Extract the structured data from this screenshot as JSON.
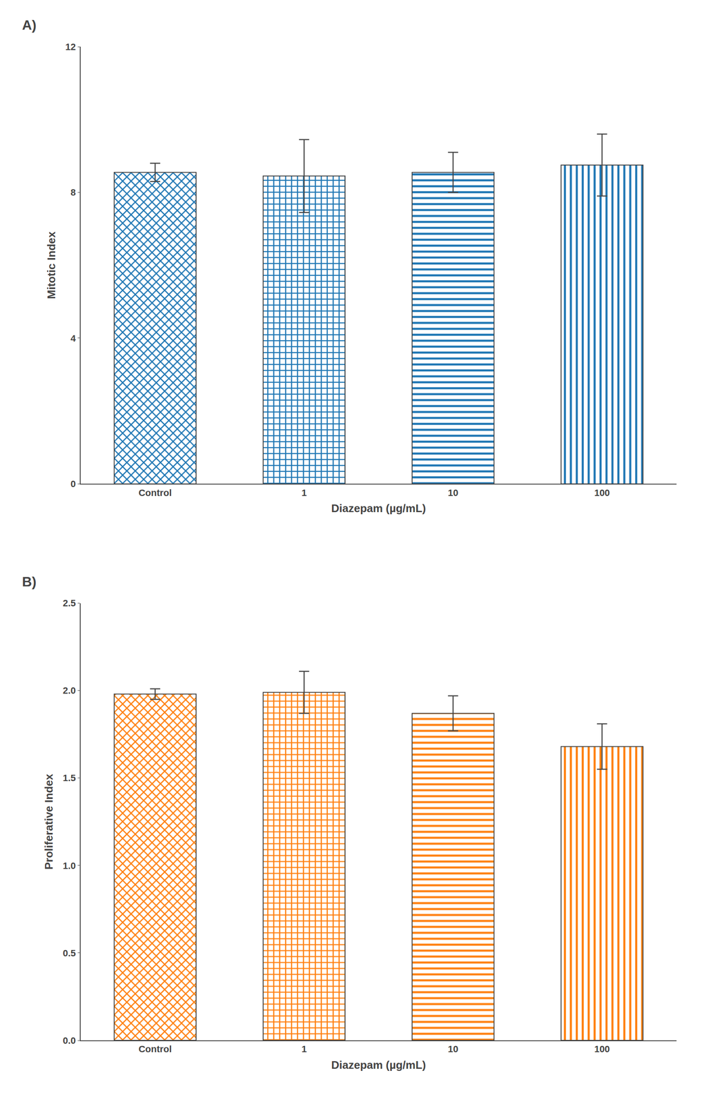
{
  "chart_data": [
    {
      "type": "bar",
      "title": "A)",
      "categories": [
        "Control",
        "1",
        "10",
        "100"
      ],
      "values": [
        8.55,
        8.45,
        8.55,
        8.75
      ],
      "errors": [
        0.25,
        1.0,
        0.55,
        0.85
      ],
      "xlabel": "Diazepam (µg/mL)",
      "ylabel": "Mitotic Index",
      "ylim": [
        0,
        12
      ],
      "yticks": [
        0,
        4,
        8,
        12
      ],
      "grid": false
    },
    {
      "type": "bar",
      "title": "B)",
      "categories": [
        "Control",
        "1",
        "10",
        "100"
      ],
      "values": [
        1.98,
        1.99,
        1.87,
        1.68
      ],
      "errors": [
        0.03,
        0.12,
        0.1,
        0.13
      ],
      "xlabel": "Diazepam (µg/mL)",
      "ylabel": "Proliferative Index",
      "ylim": [
        0,
        2.5
      ],
      "yticks": [
        {
          "value": 0,
          "label": "0.0"
        },
        0.5,
        {
          "value": 1,
          "label": "1.0"
        },
        1.5,
        {
          "value": 2,
          "label": "2.0"
        },
        2.5
      ],
      "grid": false
    }
  ]
}
